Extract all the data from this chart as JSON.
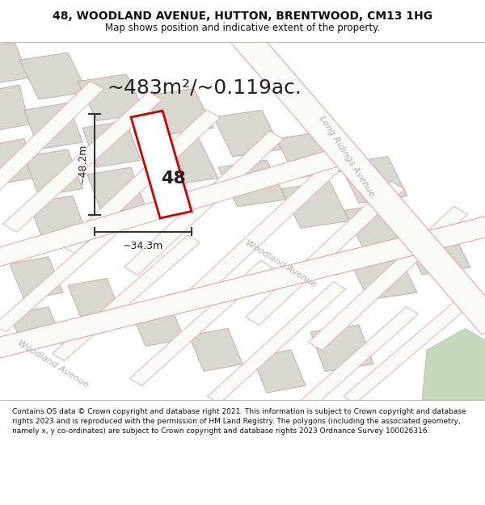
{
  "title": "48, WOODLAND AVENUE, HUTTON, BRENTWOOD, CM13 1HG",
  "subtitle": "Map shows position and indicative extent of the property.",
  "area_text": "~483m²/~0.119ac.",
  "dim_h": "~48.2m",
  "dim_w": "~34.3m",
  "label_48": "48",
  "footer": "Contains OS data © Crown copyright and database right 2021. This information is subject to Crown copyright and database rights 2023 and is reproduced with the permission of HM Land Registry. The polygons (including the associated geometry, namely x, y co-ordinates) are subject to Crown copyright and database rights 2023 Ordnance Survey 100026316.",
  "title_fontsize": 10,
  "subtitle_fontsize": 8.5,
  "area_fontsize": 18,
  "dim_fontsize": 9,
  "label_fontsize": 16,
  "footer_fontsize": 6.5,
  "map_bg": "#eeeee8",
  "road_color": "#f8f8f8",
  "road_edge": "#e8aaaa",
  "building_fill": "#d8d8d0",
  "building_edge": "#ccaaaa",
  "plot_fill": "#ffffff",
  "plot_edge": "#cc0000",
  "green_fill": "#c5d8bc",
  "street_label_color": "#b0b0b0",
  "dim_color": "#333333",
  "text_color": "#111111",
  "title_color": "#111111",
  "footer_color": "#111111"
}
